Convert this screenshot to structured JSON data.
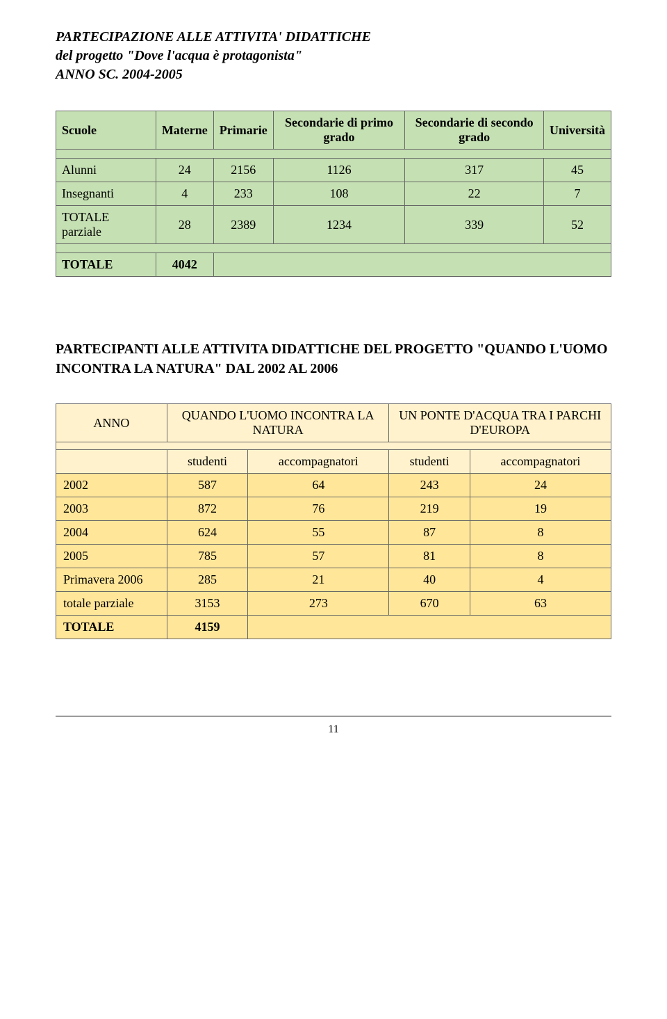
{
  "colors": {
    "table1_bg": "#c5e0b3",
    "table2_header_bg": "#fff2cc",
    "table2_body_bg": "#ffe699",
    "border": "#666666",
    "text": "#000000",
    "page_bg": "#ffffff"
  },
  "title": {
    "line1": "PARTECIPAZIONE ALLE ATTIVITA' DIDATTICHE",
    "line2": "del progetto \"Dove l'acqua è protagonista\"",
    "line3": "ANNO SC. 2004-2005"
  },
  "table1": {
    "headers": [
      "Scuole",
      "Materne",
      "Primarie",
      "Secondarie di primo grado",
      "Secondarie di secondo grado",
      "Università"
    ],
    "rows": [
      {
        "label": "Alunni",
        "v": [
          "24",
          "2156",
          "1126",
          "317",
          "45"
        ]
      },
      {
        "label": "Insegnanti",
        "v": [
          "4",
          "233",
          "108",
          "22",
          "7"
        ]
      },
      {
        "label": "TOTALE parziale",
        "v": [
          "28",
          "2389",
          "1234",
          "339",
          "52"
        ]
      }
    ],
    "total_label": "TOTALE",
    "total_value": "4042"
  },
  "heading2": "PARTECIPANTI ALLE ATTIVITA DIDATTICHE DEL PROGETTO \"QUANDO L'UOMO INCONTRA LA NATURA\" DAL 2002 AL 2006",
  "table2": {
    "top_headers": {
      "anno": "ANNO",
      "col_a": "QUANDO L'UOMO INCONTRA LA NATURA",
      "col_b": "UN PONTE D'ACQUA TRA I PARCHI D'EUROPA"
    },
    "sub_headers": [
      "studenti",
      "accompagnatori",
      "studenti",
      "accompagnatori"
    ],
    "rows": [
      {
        "year": "2002",
        "v": [
          "587",
          "64",
          "243",
          "24"
        ]
      },
      {
        "year": "2003",
        "v": [
          "872",
          "76",
          "219",
          "19"
        ]
      },
      {
        "year": "2004",
        "v": [
          "624",
          "55",
          "87",
          "8"
        ]
      },
      {
        "year": "2005",
        "v": [
          "785",
          "57",
          "81",
          "8"
        ]
      },
      {
        "year": "Primavera 2006",
        "v": [
          "285",
          "21",
          "40",
          "4"
        ]
      },
      {
        "year": "totale parziale",
        "v": [
          "3153",
          "273",
          "670",
          "63"
        ]
      }
    ],
    "total_label": "TOTALE",
    "total_value": "4159"
  },
  "page_number": "11"
}
